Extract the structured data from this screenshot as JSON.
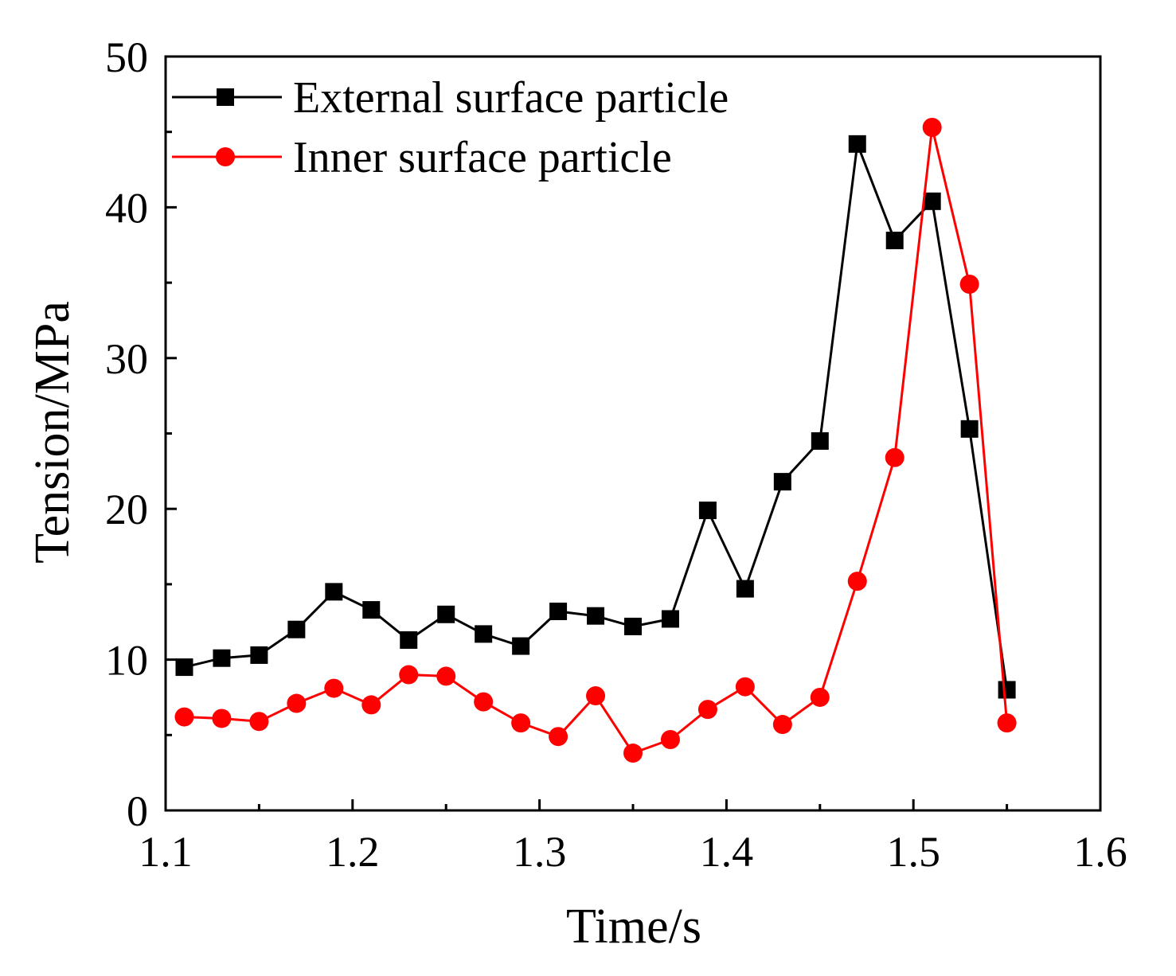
{
  "chart_data": {
    "type": "line",
    "title": "",
    "xlabel": "Time/s",
    "ylabel": "Tension/MPa",
    "xlim": [
      1.1,
      1.6
    ],
    "ylim": [
      0,
      50
    ],
    "xticks": [
      1.1,
      1.2,
      1.3,
      1.4,
      1.5,
      1.6
    ],
    "xtick_labels": [
      "1.1",
      "1.2",
      "1.3",
      "1.4",
      "1.5",
      "1.6"
    ],
    "yticks": [
      0,
      10,
      20,
      30,
      40,
      50
    ],
    "ytick_labels": [
      "0",
      "10",
      "20",
      "30",
      "40",
      "50"
    ],
    "grid": false,
    "legend_position": "top-left",
    "x": [
      1.11,
      1.13,
      1.15,
      1.17,
      1.19,
      1.21,
      1.23,
      1.25,
      1.27,
      1.29,
      1.31,
      1.33,
      1.35,
      1.37,
      1.39,
      1.41,
      1.43,
      1.45,
      1.47,
      1.49,
      1.51,
      1.53,
      1.55
    ],
    "series": [
      {
        "name": "External surface particle",
        "color": "#000000",
        "marker": "square",
        "values": [
          9.5,
          10.1,
          10.3,
          12.0,
          14.5,
          13.3,
          11.3,
          13.0,
          11.7,
          10.9,
          13.2,
          12.9,
          12.2,
          12.7,
          19.9,
          14.7,
          21.8,
          24.5,
          44.2,
          37.8,
          40.4,
          25.3,
          8.0
        ]
      },
      {
        "name": "Inner surface particle",
        "color": "#ff0000",
        "marker": "circle",
        "values": [
          6.2,
          6.1,
          5.9,
          7.1,
          8.1,
          7.0,
          9.0,
          8.9,
          7.2,
          5.8,
          4.9,
          7.6,
          3.8,
          4.7,
          6.7,
          8.2,
          5.7,
          7.5,
          15.2,
          23.4,
          45.3,
          34.9,
          5.8
        ]
      }
    ]
  }
}
